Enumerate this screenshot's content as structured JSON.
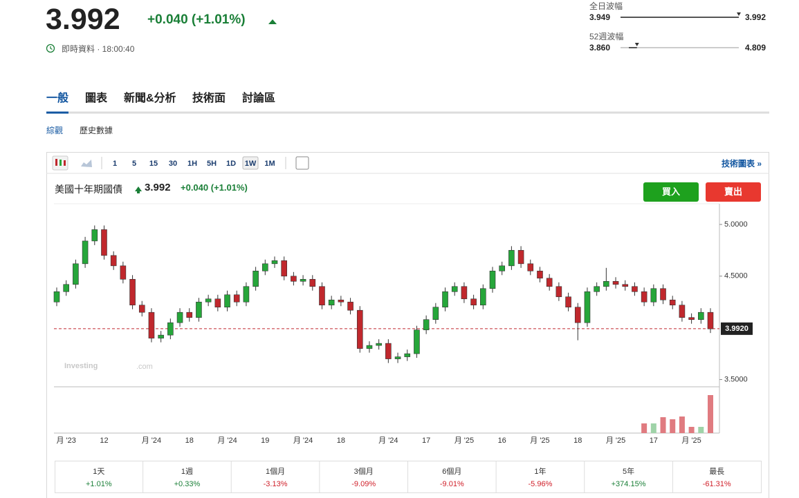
{
  "quote": {
    "price": "3.992",
    "change": "+0.040 (+1.01%)",
    "time_label": "即時資料 · 18:00:40"
  },
  "ranges": [
    {
      "label": "全日波幅",
      "low": "3.949",
      "high": "3.992"
    },
    {
      "label": "52週波幅",
      "low": "3.860",
      "high": "4.809"
    }
  ],
  "tabs": [
    "一般",
    "圖表",
    "新聞&分析",
    "技術面",
    "討論區"
  ],
  "subtabs": [
    "綜觀",
    "歷史數據"
  ],
  "intervals": [
    "1",
    "5",
    "15",
    "30",
    "1H",
    "5H",
    "1D",
    "1W",
    "1M"
  ],
  "tech_chart_link": "技術圖表 »",
  "buttons": [
    "買入",
    "賣出"
  ],
  "watermark": [
    "Investing",
    ".com"
  ],
  "performance": [
    {
      "period": "1天",
      "change": "+1.01%"
    },
    {
      "period": "1週",
      "change": "+0.33%"
    },
    {
      "period": "1個月",
      "change": "-3.13%"
    },
    {
      "period": "3個月",
      "change": "-9.09%"
    },
    {
      "period": "6個月",
      "change": "-9.01%"
    },
    {
      "period": "1年",
      "change": "-5.96%"
    },
    {
      "period": "5年",
      "change": "+374.15%"
    },
    {
      "period": "最長",
      "change": "-61.31%"
    }
  ],
  "chart_data": {
    "type": "candlestick",
    "title": "美國十年期國債",
    "up_color": "#26a63a",
    "down_color": "#c0282d",
    "vol_up_color": "#9fd3a8",
    "vol_down_color": "#e07b80",
    "ylim": [
      3.43,
      5.2
    ],
    "yticks": [
      {
        "value": 5,
        "label": "5.0000"
      },
      {
        "value": 4.5,
        "label": "4.5000"
      },
      {
        "value": 3.5,
        "label": "3.5000"
      }
    ],
    "last_price": {
      "value": 3.992,
      "label": "3.9920"
    },
    "volume_ylim": [
      0,
      60
    ],
    "categories": [
      null,
      "月 '23",
      null,
      null,
      null,
      "12",
      null,
      null,
      null,
      null,
      "月 '24",
      null,
      null,
      null,
      "18",
      null,
      null,
      null,
      "月 '24",
      null,
      null,
      null,
      "19",
      null,
      null,
      null,
      "月 '24",
      null,
      null,
      null,
      "18",
      null,
      null,
      null,
      null,
      "月 '24",
      null,
      null,
      null,
      "17",
      null,
      null,
      null,
      "月 '25",
      null,
      null,
      null,
      "16",
      null,
      null,
      null,
      "月 '25",
      null,
      null,
      null,
      "18",
      null,
      null,
      null,
      "月 '25",
      null,
      null,
      null,
      "17",
      null,
      null,
      null,
      "月 '25",
      null,
      null
    ],
    "candles": [
      [
        4.25,
        4.39,
        4.21,
        4.35
      ],
      [
        4.35,
        4.46,
        4.31,
        4.42
      ],
      [
        4.42,
        4.66,
        4.38,
        4.62
      ],
      [
        4.62,
        4.88,
        4.58,
        4.84
      ],
      [
        4.84,
        4.99,
        4.8,
        4.95
      ],
      [
        4.95,
        4.99,
        4.66,
        4.7
      ],
      [
        4.7,
        4.74,
        4.56,
        4.6
      ],
      [
        4.6,
        4.64,
        4.43,
        4.47
      ],
      [
        4.47,
        4.51,
        4.18,
        4.22
      ],
      [
        4.22,
        4.26,
        4.11,
        4.15
      ],
      [
        4.15,
        4.19,
        3.86,
        3.9
      ],
      [
        3.9,
        3.97,
        3.86,
        3.93
      ],
      [
        3.93,
        4.09,
        3.89,
        4.05
      ],
      [
        4.05,
        4.19,
        4.01,
        4.15
      ],
      [
        4.15,
        4.19,
        4.06,
        4.1
      ],
      [
        4.1,
        4.29,
        4.06,
        4.25
      ],
      [
        4.25,
        4.32,
        4.21,
        4.28
      ],
      [
        4.28,
        4.32,
        4.16,
        4.2
      ],
      [
        4.2,
        4.36,
        4.16,
        4.32
      ],
      [
        4.32,
        4.36,
        4.21,
        4.25
      ],
      [
        4.25,
        4.44,
        4.21,
        4.4
      ],
      [
        4.4,
        4.59,
        4.36,
        4.55
      ],
      [
        4.55,
        4.66,
        4.51,
        4.62
      ],
      [
        4.62,
        4.69,
        4.58,
        4.65
      ],
      [
        4.65,
        4.69,
        4.46,
        4.5
      ],
      [
        4.5,
        4.54,
        4.41,
        4.45
      ],
      [
        4.45,
        4.51,
        4.41,
        4.47
      ],
      [
        4.47,
        4.51,
        4.36,
        4.4
      ],
      [
        4.4,
        4.44,
        4.18,
        4.22
      ],
      [
        4.22,
        4.31,
        4.18,
        4.27
      ],
      [
        4.27,
        4.31,
        4.21,
        4.25
      ],
      [
        4.25,
        4.29,
        4.13,
        4.17
      ],
      [
        4.17,
        4.21,
        3.76,
        3.8
      ],
      [
        3.8,
        3.87,
        3.76,
        3.83
      ],
      [
        3.83,
        3.89,
        3.79,
        3.85
      ],
      [
        3.85,
        3.89,
        3.66,
        3.7
      ],
      [
        3.7,
        3.76,
        3.66,
        3.72
      ],
      [
        3.72,
        3.79,
        3.68,
        3.75
      ],
      [
        3.75,
        4.02,
        3.71,
        3.98
      ],
      [
        3.98,
        4.12,
        3.94,
        4.08
      ],
      [
        4.08,
        4.24,
        4.04,
        4.2
      ],
      [
        4.2,
        4.39,
        4.16,
        4.35
      ],
      [
        4.35,
        4.44,
        4.31,
        4.4
      ],
      [
        4.4,
        4.44,
        4.24,
        4.28
      ],
      [
        4.28,
        4.32,
        4.18,
        4.22
      ],
      [
        4.22,
        4.42,
        4.18,
        4.38
      ],
      [
        4.38,
        4.59,
        4.34,
        4.55
      ],
      [
        4.55,
        4.64,
        4.51,
        4.6
      ],
      [
        4.6,
        4.79,
        4.56,
        4.75
      ],
      [
        4.75,
        4.79,
        4.58,
        4.62
      ],
      [
        4.62,
        4.66,
        4.51,
        4.55
      ],
      [
        4.55,
        4.59,
        4.44,
        4.48
      ],
      [
        4.48,
        4.52,
        4.36,
        4.4
      ],
      [
        4.4,
        4.44,
        4.26,
        4.3
      ],
      [
        4.3,
        4.34,
        4.16,
        4.2
      ],
      [
        4.2,
        4.24,
        3.88,
        4.05
      ],
      [
        4.05,
        4.39,
        4.01,
        4.35
      ],
      [
        4.35,
        4.44,
        4.31,
        4.4
      ],
      [
        4.4,
        4.58,
        4.36,
        4.45
      ],
      [
        4.45,
        4.49,
        4.38,
        4.42
      ],
      [
        4.42,
        4.46,
        4.36,
        4.4
      ],
      [
        4.4,
        4.44,
        4.31,
        4.35
      ],
      [
        4.35,
        4.39,
        4.21,
        4.25
      ],
      [
        4.25,
        4.42,
        4.21,
        4.38
      ],
      [
        4.38,
        4.42,
        4.23,
        4.27
      ],
      [
        4.27,
        4.31,
        4.18,
        4.22
      ],
      [
        4.22,
        4.26,
        4.06,
        4.1
      ],
      [
        4.1,
        4.14,
        4.04,
        4.08
      ],
      [
        4.08,
        4.19,
        4.04,
        4.15
      ],
      [
        4.15,
        4.19,
        3.95,
        3.99
      ]
    ],
    "volume": [
      null,
      null,
      null,
      null,
      null,
      null,
      null,
      null,
      null,
      null,
      null,
      null,
      null,
      null,
      null,
      null,
      null,
      null,
      null,
      null,
      null,
      null,
      null,
      null,
      null,
      null,
      null,
      null,
      null,
      null,
      null,
      null,
      null,
      null,
      null,
      null,
      null,
      null,
      null,
      null,
      null,
      null,
      null,
      null,
      null,
      null,
      null,
      null,
      null,
      null,
      null,
      null,
      null,
      null,
      null,
      null,
      null,
      null,
      null,
      null,
      null,
      null,
      14,
      14,
      23,
      20,
      24,
      9,
      9,
      55
    ]
  }
}
